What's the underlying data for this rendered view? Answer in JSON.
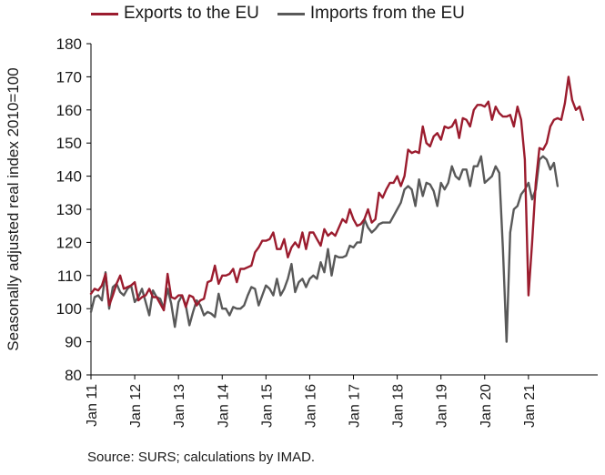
{
  "chart_data": {
    "type": "line",
    "ylabel": "Seasonally adjusted real index 2010=100",
    "ylim": [
      80,
      180
    ],
    "yticks": [
      "80",
      "90",
      "100",
      "110",
      "120",
      "130",
      "140",
      "150",
      "160",
      "170",
      "180"
    ],
    "xticks": [
      "Jan 11",
      "Jan 12",
      "Jan 13",
      "Jan 14",
      "Jan 15",
      "Jan 16",
      "Jan 17",
      "Jan 18",
      "Jan 19",
      "Jan 20",
      "Jan 21"
    ],
    "x_start": "2011-01",
    "x_end": "2021-07",
    "legend_position": "top",
    "grid": false,
    "source": "Source: SURS; calculations by IMAD.",
    "series": [
      {
        "name": "Exports to the EU",
        "color": "#9b1c2e",
        "values": [
          104.5,
          106,
          105.5,
          107,
          110.5,
          101,
          104,
          107.5,
          110,
          106,
          106.5,
          107,
          108,
          102.5,
          103.5,
          104,
          106,
          103.5,
          103.5,
          101.5,
          99.5,
          110.5,
          103.5,
          103,
          104,
          104,
          100.5,
          104,
          103.5,
          101,
          102.5,
          103,
          108,
          108.5,
          113,
          107.5,
          110,
          110,
          110.5,
          112,
          108,
          112,
          112,
          112.5,
          113,
          117,
          118.5,
          120.5,
          120.5,
          121,
          123,
          118,
          118,
          121,
          115.5,
          118.5,
          120,
          118.5,
          123,
          118,
          123,
          123,
          121,
          119,
          124,
          122,
          123,
          122,
          124.5,
          127,
          126,
          130,
          127,
          125,
          125.5,
          127,
          130,
          126,
          127,
          135,
          133.5,
          136,
          138,
          138,
          140,
          137,
          140,
          148,
          147,
          147.5,
          147,
          155,
          150,
          149,
          152,
          153,
          151,
          155,
          154.5,
          155,
          157,
          151.5,
          157.5,
          157,
          155,
          160,
          161.5,
          161.5,
          161,
          162.5,
          157,
          161,
          159,
          158,
          158,
          158.5,
          155,
          161,
          157,
          145,
          104,
          120,
          138,
          148.5,
          148,
          150,
          155,
          157,
          157.5,
          157,
          162,
          170,
          163,
          160,
          161,
          157
        ]
      },
      {
        "name": "Imports from the EU",
        "color": "#595959",
        "values": [
          99,
          103.5,
          104,
          102.5,
          111,
          100,
          106.5,
          107.5,
          105,
          104,
          106,
          107,
          102,
          103.5,
          106,
          102,
          98,
          105.5,
          103.5,
          103,
          100,
          106,
          101.5,
          94.5,
          102,
          104,
          101,
          95,
          99,
          102.5,
          101,
          98,
          99,
          98.5,
          97.5,
          104.5,
          100,
          100,
          98,
          100.5,
          100,
          100,
          101,
          104,
          106.5,
          106,
          101,
          104,
          107,
          106,
          104,
          109,
          104,
          106,
          109,
          113.5,
          105,
          108,
          109,
          106.5,
          109,
          110,
          109,
          114,
          111,
          118,
          110,
          116,
          115.5,
          115.5,
          116,
          119,
          118.5,
          120,
          120,
          127,
          124.5,
          123,
          124,
          125.5,
          126,
          126,
          126,
          128,
          130,
          132,
          136,
          137,
          136,
          131,
          139,
          134,
          138,
          137.5,
          135.5,
          131,
          138,
          136,
          138,
          143,
          140,
          139,
          142,
          142,
          137,
          143,
          143,
          146,
          138,
          139,
          140,
          143,
          141,
          118,
          90,
          123,
          130,
          131,
          134.5,
          136,
          138,
          133,
          136,
          145,
          146,
          145,
          142,
          144,
          137
        ]
      }
    ]
  }
}
